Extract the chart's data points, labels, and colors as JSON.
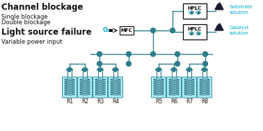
{
  "title_channel": "Channel blockage",
  "label_single": "Single blockage",
  "label_double": "Double blockage",
  "title_light": "Light source failure",
  "label_variable": "Variable power input",
  "label_substrate": "Substrate\nsolution",
  "label_catalyst": "Catalyst\nsolution",
  "label_mfc": "MFC",
  "label_o2": "O₂",
  "label_hplc": "HPLC",
  "reactors": [
    "R1",
    "R2",
    "R3",
    "R4",
    "R5",
    "R6",
    "R7",
    "R8"
  ],
  "teal": "#3a8a96",
  "teal_dark": "#2a6a76",
  "teal_light": "#aaeeff",
  "teal_node": "#2d7d8a",
  "cyan_text": "#00aacc",
  "bg": "#ffffff",
  "text_dark": "#111111"
}
